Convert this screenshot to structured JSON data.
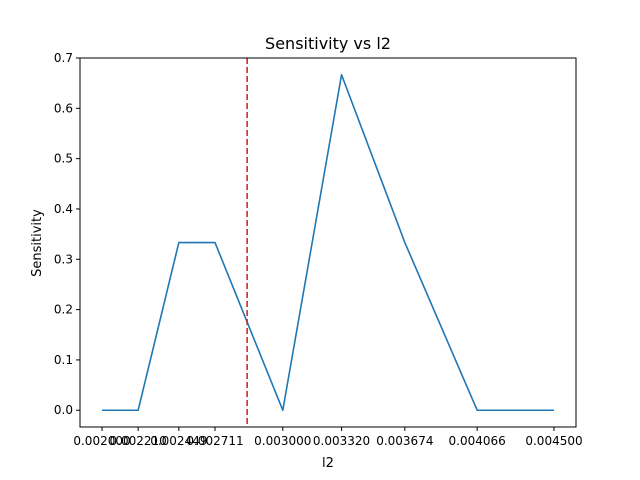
{
  "chart_data": {
    "type": "line",
    "title": "Sensitivity vs l2",
    "xlabel": "l2",
    "ylabel": "Sensitivity",
    "xlim": [
      0.001875,
      0.004625
    ],
    "ylim": [
      -0.0333,
      0.7
    ],
    "x_ticks": [
      0.002,
      0.00221,
      0.002449,
      0.002711,
      0.003,
      0.00332,
      0.003674,
      0.004066,
      0.0045
    ],
    "x_tick_labels": [
      "0.002000",
      "0.002210",
      "0.002449",
      "0.002711",
      "0.003000",
      "0.003320",
      "0.003674",
      "0.004066",
      "0.004500"
    ],
    "y_ticks": [
      0.0,
      0.1,
      0.2,
      0.3,
      0.4,
      0.5,
      0.6,
      0.7
    ],
    "y_tick_labels": [
      "0.0",
      "0.1",
      "0.2",
      "0.3",
      "0.4",
      "0.5",
      "0.6",
      "0.7"
    ],
    "grid": false,
    "series": [
      {
        "color": "#1f77b4",
        "x": [
          0.002,
          0.00221,
          0.002449,
          0.002711,
          0.003,
          0.00332,
          0.003674,
          0.004066,
          0.0045
        ],
        "y": [
          0.0,
          0.0,
          0.3333,
          0.3333,
          0.0,
          0.6667,
          0.3333,
          0.0,
          0.0
        ],
        "x_plot_positions": [
          0.0,
          0.08,
          0.17,
          0.25,
          0.4,
          0.53,
          0.67,
          0.83,
          1.0
        ]
      }
    ],
    "reference_lines": [
      {
        "orientation": "vertical",
        "x": 0.002848,
        "color": "#d62728",
        "style": "dashed"
      }
    ]
  }
}
